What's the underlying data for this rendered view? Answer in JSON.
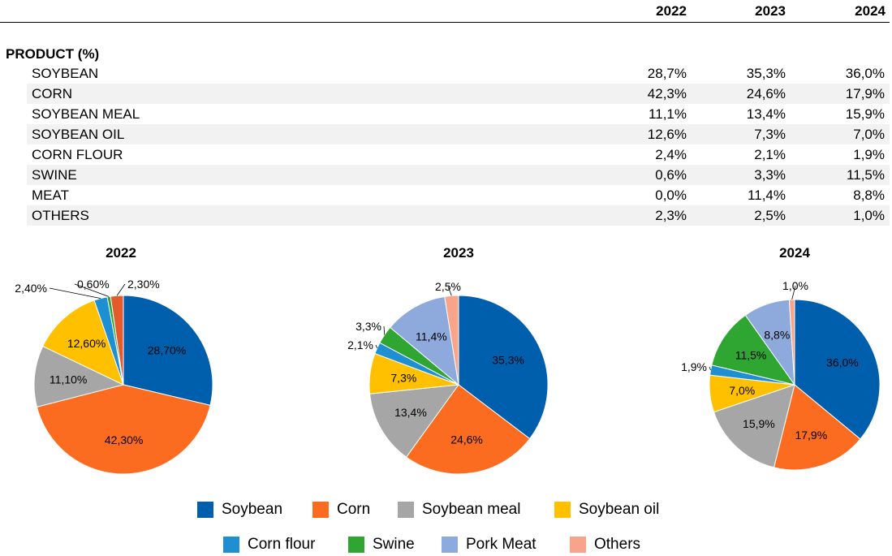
{
  "table": {
    "years": [
      "2022",
      "2023",
      "2024"
    ],
    "section_label": "PRODUCT (%)",
    "rows": [
      {
        "label": "SOYBEAN",
        "values": [
          "28,7%",
          "35,3%",
          "36,0%"
        ]
      },
      {
        "label": "CORN",
        "values": [
          "42,3%",
          "24,6%",
          "17,9%"
        ]
      },
      {
        "label": "SOYBEAN MEAL",
        "values": [
          "11,1%",
          "13,4%",
          "15,9%"
        ]
      },
      {
        "label": "SOYBEAN OIL",
        "values": [
          "12,6%",
          "7,3%",
          "7,0%"
        ]
      },
      {
        "label": "CORN FLOUR",
        "values": [
          "2,4%",
          "2,1%",
          "1,9%"
        ]
      },
      {
        "label": "SWINE",
        "values": [
          "0,6%",
          "3,3%",
          "11,5%"
        ]
      },
      {
        "label": "MEAT",
        "values": [
          "0,0%",
          "11,4%",
          "8,8%"
        ]
      },
      {
        "label": "OTHERS",
        "values": [
          "2,3%",
          "2,5%",
          "1,0%"
        ]
      }
    ]
  },
  "colors": {
    "Soybean": "#005fad",
    "Corn": "#fb6b20",
    "Soybean meal": "#a6a6a6",
    "Soybean oil": "#ffc000",
    "Corn flour": "#1e8fd0",
    "Swine": "#2fa532",
    "Pork Meat": "#8ea9db",
    "Others": "#f8a48a",
    "Others_2022": "#e55a2b"
  },
  "legend": [
    "Soybean",
    "Corn",
    "Soybean meal",
    "Soybean oil",
    "Corn flour",
    "Swine",
    "Pork Meat",
    "Others"
  ],
  "chart_data": [
    {
      "type": "pie",
      "title": "2022",
      "labels": [
        "Soybean",
        "Corn",
        "Soybean meal",
        "Soybean oil",
        "Corn flour",
        "Swine",
        "Pork Meat",
        "Others"
      ],
      "values": [
        28.7,
        42.3,
        11.1,
        12.6,
        2.4,
        0.6,
        0.0,
        2.3
      ],
      "data_labels": [
        "28,70%",
        "42,30%",
        "11,10%",
        "12,60%",
        "2,40%",
        "0,60%",
        "",
        "2,30%"
      ]
    },
    {
      "type": "pie",
      "title": "2023",
      "labels": [
        "Soybean",
        "Corn",
        "Soybean meal",
        "Soybean oil",
        "Corn flour",
        "Swine",
        "Pork Meat",
        "Others"
      ],
      "values": [
        35.3,
        24.6,
        13.4,
        7.3,
        2.1,
        3.3,
        11.4,
        2.5
      ],
      "data_labels": [
        "35,3%",
        "24,6%",
        "13,4%",
        "7,3%",
        "2,1%",
        "3,3%",
        "11,4%",
        "2,5%"
      ]
    },
    {
      "type": "pie",
      "title": "2024",
      "labels": [
        "Soybean",
        "Corn",
        "Soybean meal",
        "Soybean oil",
        "Corn flour",
        "Swine",
        "Pork Meat",
        "Others"
      ],
      "values": [
        36.0,
        17.9,
        15.9,
        7.0,
        1.9,
        11.5,
        8.8,
        1.0
      ],
      "data_labels": [
        "36,0%",
        "17,9%",
        "15,9%",
        "7,0%",
        "1,9%",
        "11,5%",
        "8,8%",
        "1,0%"
      ]
    }
  ]
}
